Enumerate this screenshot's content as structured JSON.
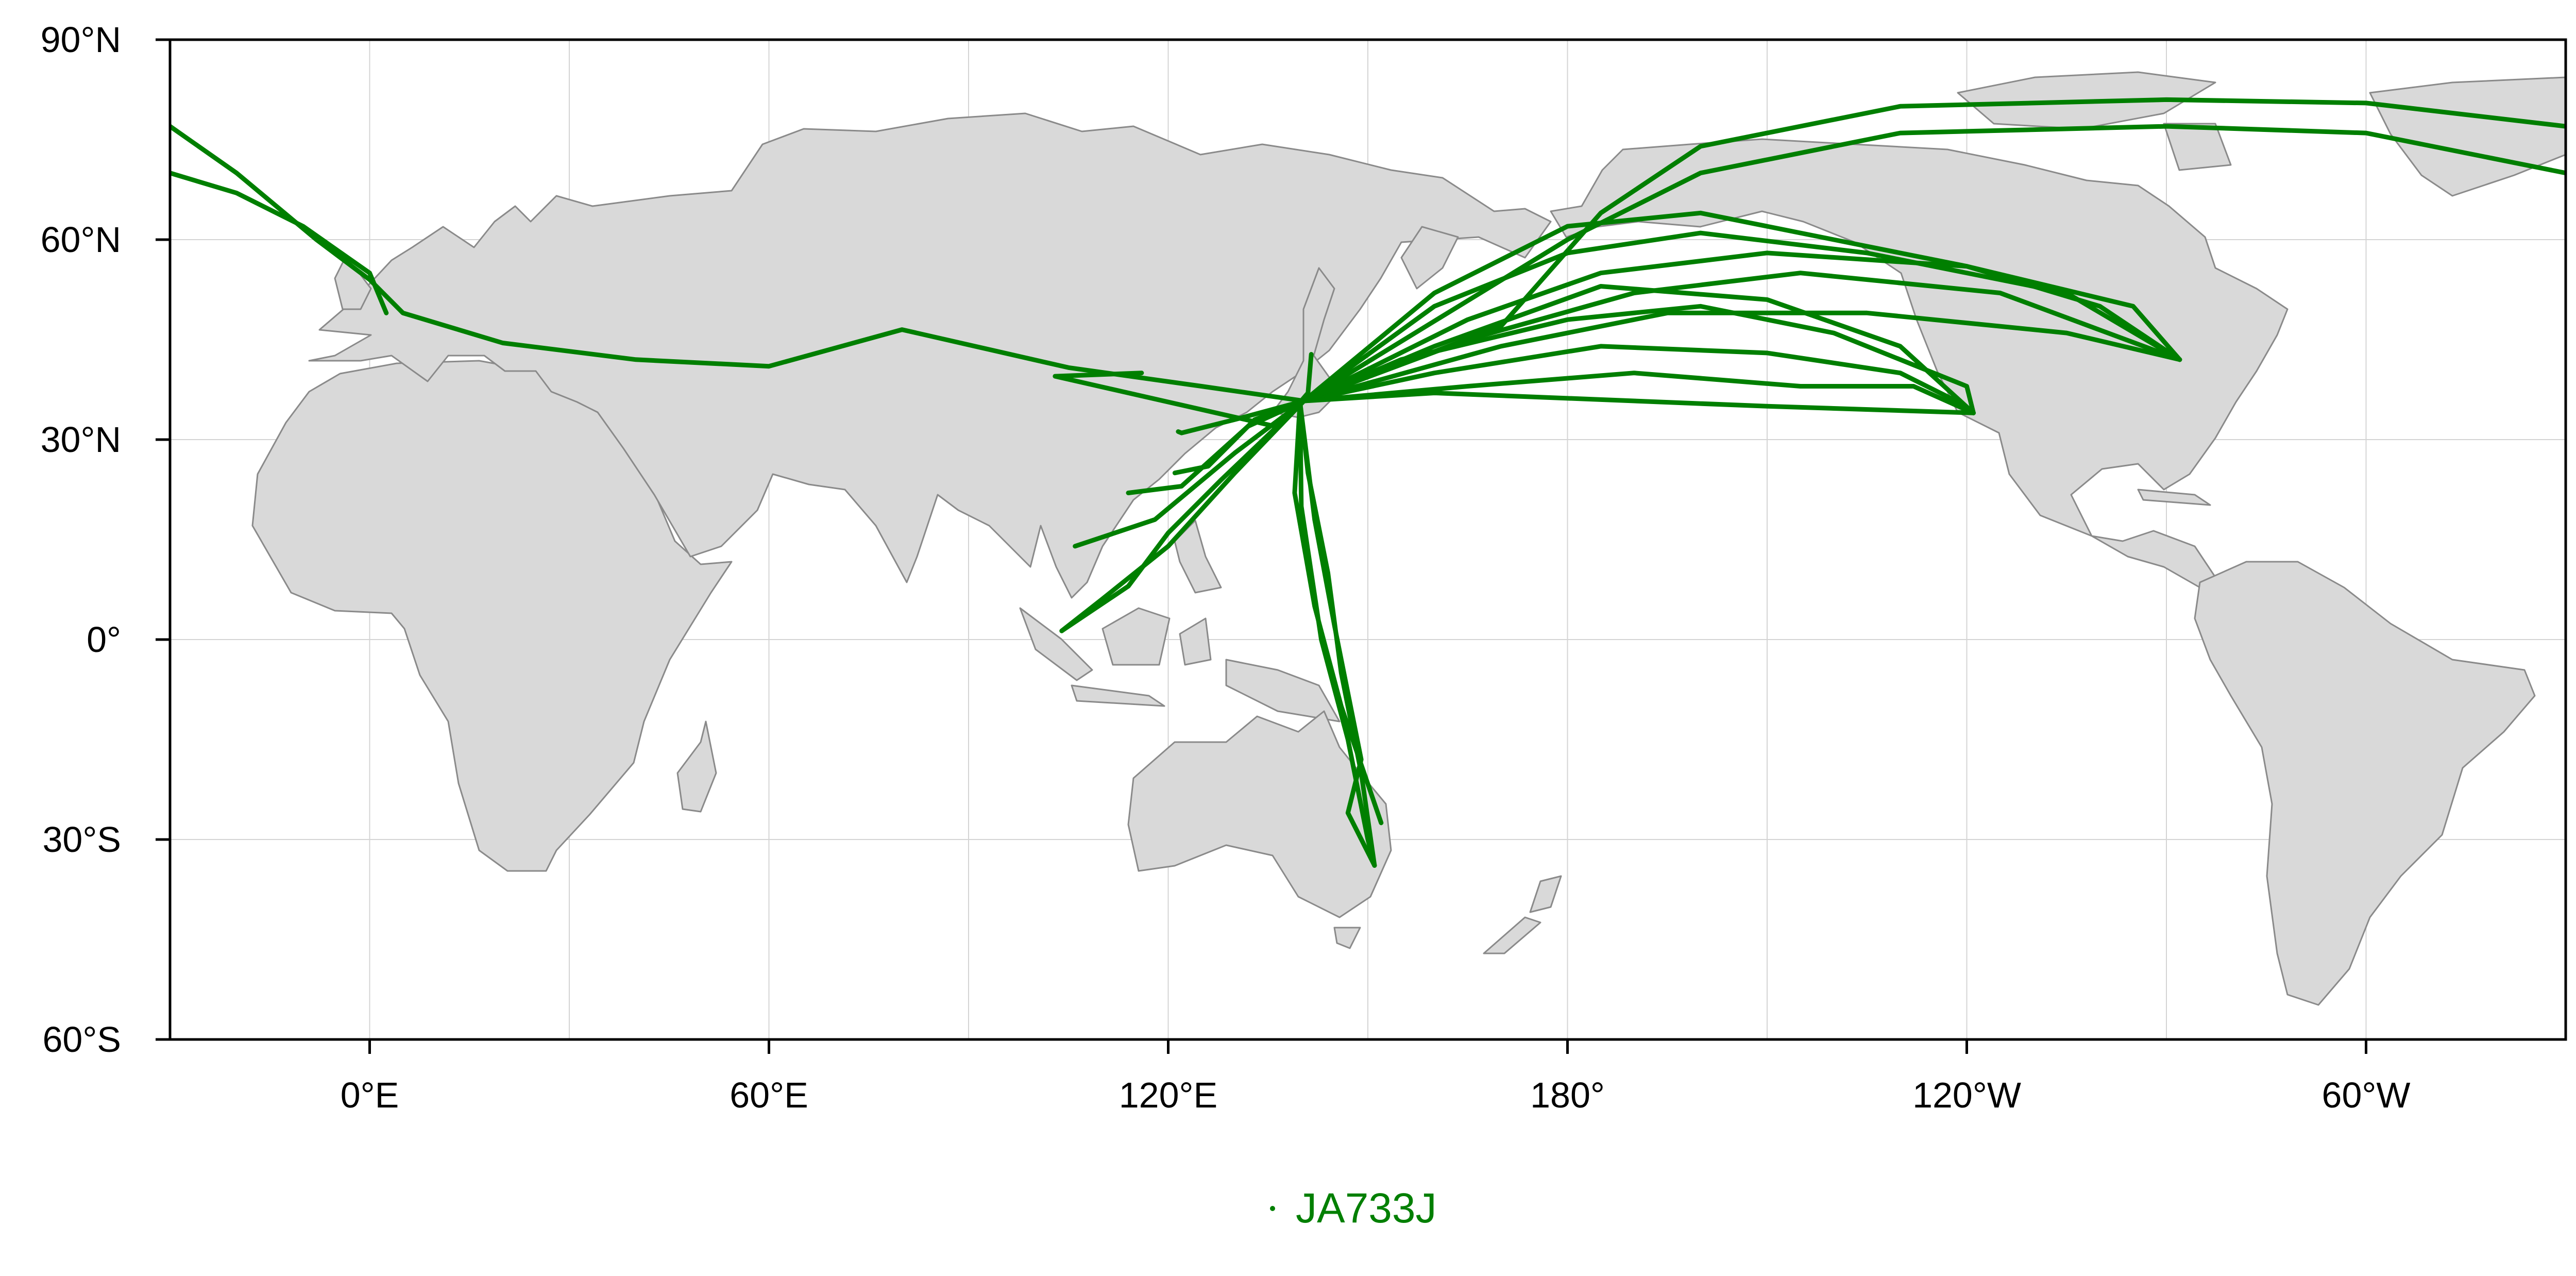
{
  "map": {
    "projection": "equirectangular",
    "lon_range": [
      -30,
      330
    ],
    "lat_range": [
      -60,
      90
    ],
    "grid": true,
    "land_color": "#d9d9d9",
    "coast_color": "#8a8a8a",
    "grid_color": "#d4d4d4",
    "track_color": "#007f00",
    "x_ticks": [
      {
        "lon": 0,
        "label": "0°E"
      },
      {
        "lon": 60,
        "label": "60°E"
      },
      {
        "lon": 120,
        "label": "120°E"
      },
      {
        "lon": 180,
        "label": "180°"
      },
      {
        "lon": 240,
        "label": "120°W"
      },
      {
        "lon": 300,
        "label": "60°W"
      }
    ],
    "y_ticks": [
      {
        "lat": 90,
        "label": "90°N"
      },
      {
        "lat": 60,
        "label": "60°N"
      },
      {
        "lat": 30,
        "label": "30°N"
      },
      {
        "lat": 0,
        "label": "0°"
      },
      {
        "lat": -30,
        "label": "30°S"
      },
      {
        "lat": -60,
        "label": "60°S"
      }
    ],
    "legend": {
      "label": "JA733J",
      "position": "bottom-center",
      "color": "#007f00"
    },
    "tracks": [
      {
        "name": "JA733J",
        "points": [
          [
            140.4,
            35.8
          ],
          [
            125,
            38
          ],
          [
            105,
            40.8
          ],
          [
            80,
            46.5
          ],
          [
            60,
            41
          ],
          [
            40,
            42
          ],
          [
            20,
            44.5
          ],
          [
            5,
            49
          ],
          [
            0,
            54
          ],
          [
            -8,
            60
          ],
          [
            -20,
            70
          ],
          [
            -30,
            77
          ]
        ]
      },
      {
        "name": "JA733J",
        "points": [
          [
            2.5,
            49
          ],
          [
            0,
            55
          ],
          [
            -10,
            62
          ],
          [
            -20,
            67
          ],
          [
            -30,
            70
          ]
        ]
      },
      {
        "name": "JA733J",
        "points": [
          [
            140.4,
            35.8
          ],
          [
            160,
            52
          ],
          [
            180,
            62
          ],
          [
            200,
            64
          ],
          [
            220,
            60
          ],
          [
            240,
            56
          ],
          [
            260,
            50
          ],
          [
            272,
            42
          ]
        ]
      },
      {
        "name": "JA733J",
        "points": [
          [
            140.4,
            35.8
          ],
          [
            160,
            50
          ],
          [
            180,
            58
          ],
          [
            200,
            61
          ],
          [
            225,
            58
          ],
          [
            255,
            52
          ],
          [
            272,
            42
          ]
        ]
      },
      {
        "name": "JA733J",
        "points": [
          [
            140.4,
            35.8
          ],
          [
            165,
            48
          ],
          [
            185,
            55
          ],
          [
            210,
            58
          ],
          [
            240,
            56
          ],
          [
            265,
            50
          ],
          [
            272,
            42
          ]
        ]
      },
      {
        "name": "JA733J",
        "points": [
          [
            140.4,
            35.8
          ],
          [
            165,
            45
          ],
          [
            190,
            52
          ],
          [
            215,
            55
          ],
          [
            245,
            52
          ],
          [
            272,
            42
          ]
        ]
      },
      {
        "name": "JA733J",
        "points": [
          [
            140.4,
            35.8
          ],
          [
            170,
            44
          ],
          [
            195,
            49
          ],
          [
            225,
            49
          ],
          [
            255,
            46
          ],
          [
            272,
            42
          ]
        ]
      },
      {
        "name": "JA733J",
        "points": [
          [
            140.4,
            35.8
          ],
          [
            170,
            47
          ],
          [
            185,
            64
          ],
          [
            200,
            74
          ],
          [
            230,
            80
          ],
          [
            270,
            81
          ],
          [
            300,
            80.5
          ],
          [
            330,
            77
          ]
        ]
      },
      {
        "name": "JA733J",
        "points": [
          [
            140.4,
            35.8
          ],
          [
            180,
            60
          ],
          [
            200,
            70
          ],
          [
            230,
            76
          ],
          [
            270,
            77
          ],
          [
            300,
            76
          ],
          [
            330,
            70
          ]
        ]
      },
      {
        "name": "JA733J",
        "points": [
          [
            140.4,
            35.8
          ],
          [
            160,
            40
          ],
          [
            185,
            44
          ],
          [
            210,
            43
          ],
          [
            230,
            40
          ],
          [
            238,
            36
          ],
          [
            241,
            34
          ]
        ]
      },
      {
        "name": "JA733J",
        "points": [
          [
            140.4,
            35.8
          ],
          [
            165,
            38
          ],
          [
            190,
            40
          ],
          [
            215,
            38
          ],
          [
            232,
            38
          ],
          [
            241,
            34
          ]
        ]
      },
      {
        "name": "JA733J",
        "points": [
          [
            140.4,
            35.8
          ],
          [
            160,
            37
          ],
          [
            185,
            36
          ],
          [
            210,
            35
          ],
          [
            241,
            34
          ]
        ]
      },
      {
        "name": "JA733J",
        "points": [
          [
            140.4,
            35.8
          ],
          [
            155,
            42
          ],
          [
            180,
            48
          ],
          [
            200,
            50
          ],
          [
            220,
            46
          ],
          [
            240,
            38
          ],
          [
            241,
            34
          ]
        ]
      },
      {
        "name": "JA733J",
        "points": [
          [
            140.4,
            35.8
          ],
          [
            160,
            44
          ],
          [
            185,
            53
          ],
          [
            210,
            51
          ],
          [
            230,
            44
          ],
          [
            241,
            34
          ]
        ]
      },
      {
        "name": "JA733J",
        "points": [
          [
            139.8,
            35.6
          ],
          [
            141,
            37
          ],
          [
            141.5,
            42.8
          ]
        ]
      },
      {
        "name": "JA733J",
        "points": [
          [
            140.4,
            35.8
          ],
          [
            130,
            33
          ],
          [
            122,
            31
          ],
          [
            121.5,
            31.2
          ]
        ]
      },
      {
        "name": "JA733J",
        "points": [
          [
            140.4,
            35.8
          ],
          [
            133,
            33
          ],
          [
            126,
            26
          ],
          [
            121,
            25
          ]
        ]
      },
      {
        "name": "JA733J",
        "points": [
          [
            140.4,
            35.8
          ],
          [
            132,
            32
          ],
          [
            122,
            23
          ],
          [
            114,
            22
          ]
        ]
      },
      {
        "name": "JA733J",
        "points": [
          [
            140.4,
            35.8
          ],
          [
            130,
            28
          ],
          [
            118,
            18
          ],
          [
            106,
            14
          ]
        ]
      },
      {
        "name": "JA733J",
        "points": [
          [
            140.4,
            35.8
          ],
          [
            130,
            25
          ],
          [
            120,
            14
          ],
          [
            110,
            6
          ],
          [
            104,
            1.3
          ]
        ]
      },
      {
        "name": "JA733J",
        "points": [
          [
            140.4,
            35.8
          ],
          [
            128,
            24
          ],
          [
            120,
            16
          ],
          [
            114,
            8
          ],
          [
            104,
            1.3
          ]
        ]
      },
      {
        "name": "JA733J",
        "points": [
          [
            140.4,
            35.8
          ],
          [
            136,
            32
          ],
          [
            103,
            39.5
          ],
          [
            116,
            40
          ]
        ]
      },
      {
        "name": "JA733J",
        "points": [
          [
            139.8,
            35.6
          ],
          [
            141,
            25
          ],
          [
            144,
            10
          ],
          [
            146,
            -5
          ],
          [
            149,
            -20
          ],
          [
            151,
            -33.9
          ]
        ]
      },
      {
        "name": "JA733J",
        "points": [
          [
            139.8,
            35.6
          ],
          [
            140,
            20
          ],
          [
            143,
            0
          ],
          [
            147,
            -15
          ],
          [
            150,
            -30
          ],
          [
            151,
            -33.9
          ]
        ]
      },
      {
        "name": "JA733J",
        "points": [
          [
            139.8,
            35.6
          ],
          [
            142,
            18
          ],
          [
            145,
            2
          ],
          [
            149,
            -18
          ],
          [
            147,
            -26
          ],
          [
            151,
            -33.9
          ]
        ]
      },
      {
        "name": "JA733J",
        "points": [
          [
            139.8,
            35.6
          ],
          [
            139,
            22
          ],
          [
            142,
            5
          ],
          [
            146,
            -10
          ],
          [
            152,
            -27.5
          ]
        ]
      }
    ]
  }
}
